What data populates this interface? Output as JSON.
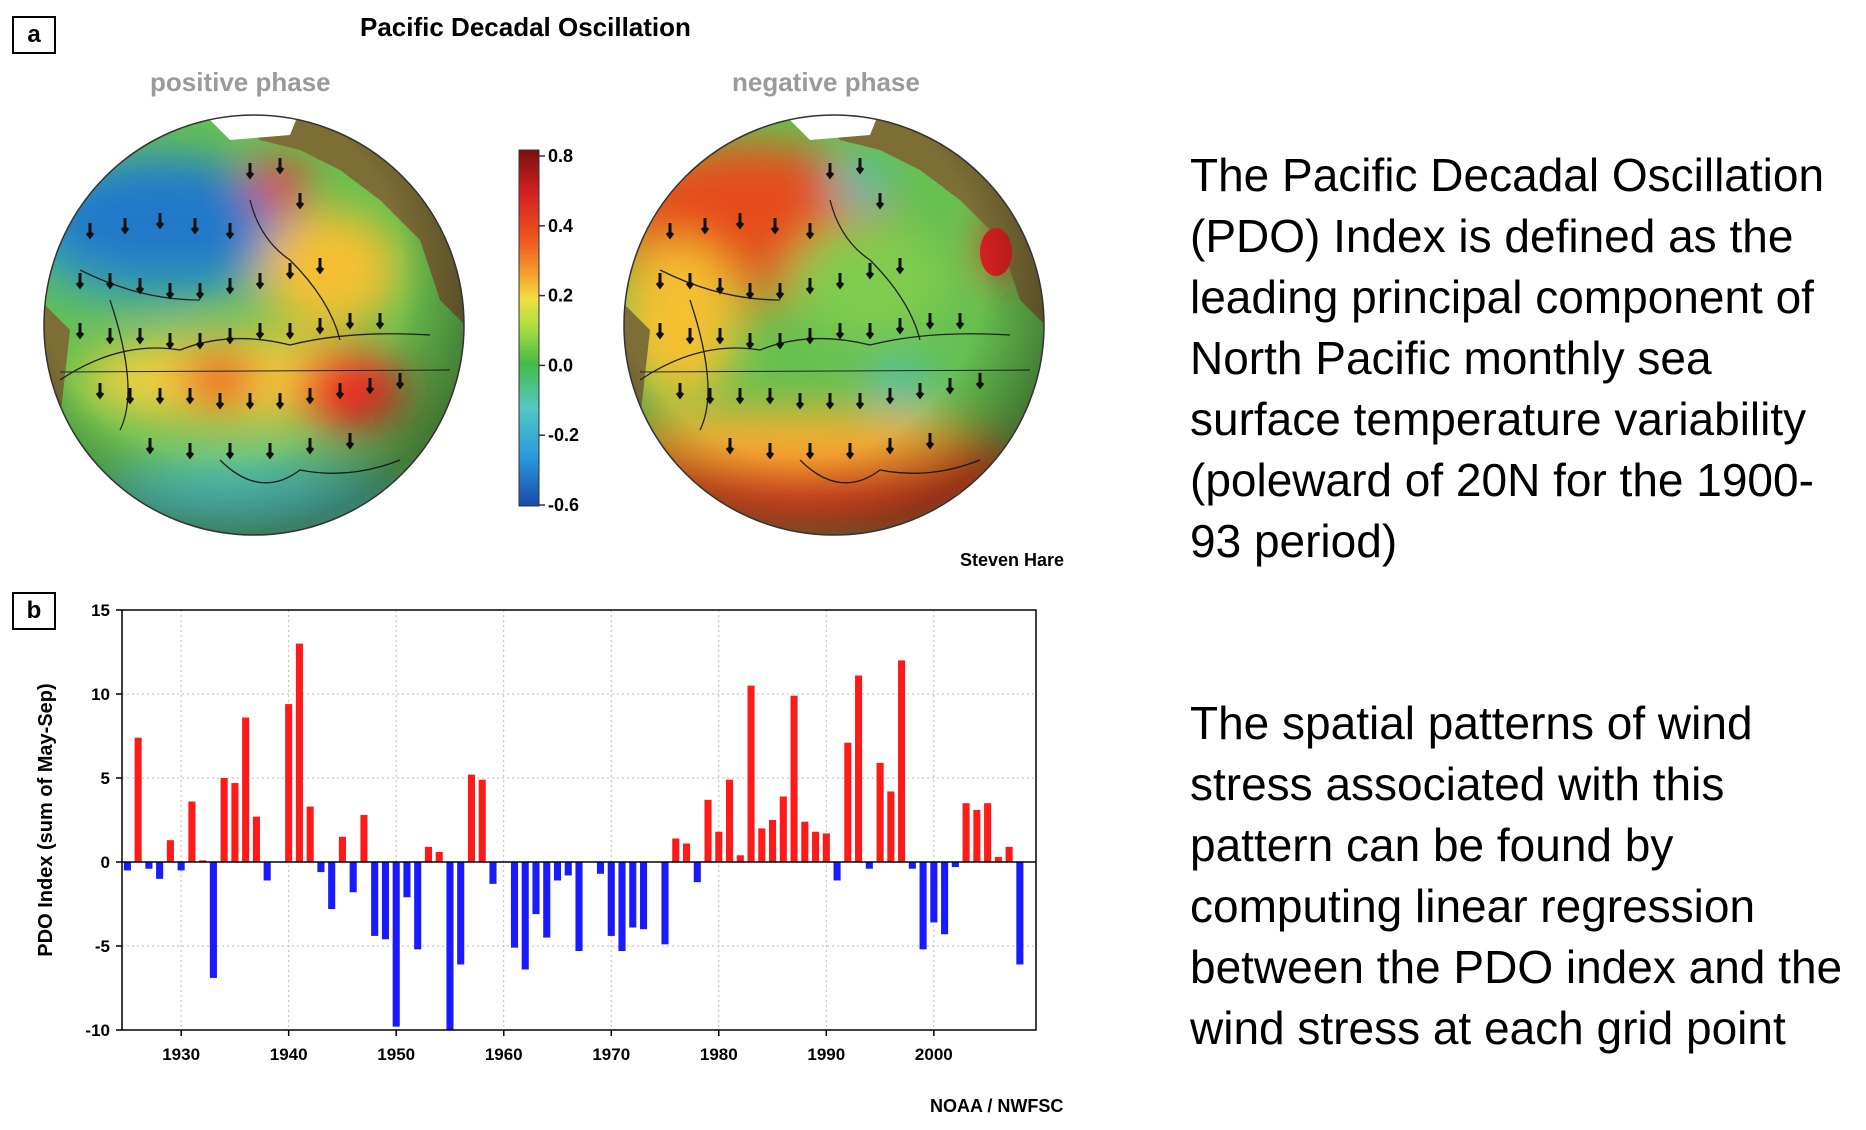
{
  "figure": {
    "panel_a_label": "a",
    "panel_b_label": "b",
    "title": "Pacific Decadal Oscillation",
    "positive_phase_label": "positive phase",
    "negative_phase_label": "negative phase",
    "credit_maps": "Steven Hare",
    "credit_chart": "NOAA / NWFSC",
    "colorbar": {
      "ticks": [
        "0.8",
        "0.4",
        "0.2",
        "0.0",
        "-0.2",
        "-0.6"
      ],
      "colors": [
        "#7a1010",
        "#d42020",
        "#ee5520",
        "#f5a030",
        "#f0e040",
        "#aadd40",
        "#44bb44",
        "#55c8c0",
        "#2a9ae0",
        "#1a4aa8"
      ]
    }
  },
  "description": {
    "paragraph1": "The Pacific Decadal Oscillation (PDO) Index is defined as the leading principal component of North Pacific monthly sea surface temperature variability (poleward of 20N for the 1900-93 period)",
    "paragraph2": "The spatial patterns of wind stress associated with this pattern can be found by computing linear regression between the PDO index and the wind stress at each grid point"
  },
  "chart_data": {
    "type": "bar",
    "ylabel": "PDO Index (sum of May-Sep)",
    "xlabel": "",
    "xlim": [
      1925,
      2009
    ],
    "ylim": [
      -10,
      15
    ],
    "yticks": [
      15,
      10,
      5,
      0,
      -5,
      -10
    ],
    "xticks": [
      1930,
      1940,
      1950,
      1960,
      1970,
      1980,
      1990,
      2000
    ],
    "grid": true,
    "positive_color": "#ff1a1a",
    "negative_color": "#1a1aff",
    "x": [
      1925,
      1926,
      1927,
      1928,
      1929,
      1930,
      1931,
      1932,
      1933,
      1934,
      1935,
      1936,
      1937,
      1938,
      1939,
      1940,
      1941,
      1942,
      1943,
      1944,
      1945,
      1946,
      1947,
      1948,
      1949,
      1950,
      1951,
      1952,
      1953,
      1954,
      1955,
      1956,
      1957,
      1958,
      1959,
      1960,
      1961,
      1962,
      1963,
      1964,
      1965,
      1966,
      1967,
      1968,
      1969,
      1970,
      1971,
      1972,
      1973,
      1974,
      1975,
      1976,
      1977,
      1978,
      1979,
      1980,
      1981,
      1982,
      1983,
      1984,
      1985,
      1986,
      1987,
      1988,
      1989,
      1990,
      1991,
      1992,
      1993,
      1994,
      1995,
      1996,
      1997,
      1998,
      1999,
      2000,
      2001,
      2002,
      2003,
      2004,
      2005,
      2006,
      2007,
      2008
    ],
    "values": [
      -0.5,
      7.4,
      -0.4,
      -1.0,
      1.3,
      -0.5,
      3.6,
      0.1,
      -6.9,
      5.0,
      4.7,
      8.6,
      2.7,
      -1.1,
      0.0,
      9.4,
      13.0,
      3.3,
      -0.6,
      -2.8,
      1.5,
      -1.8,
      2.8,
      -4.4,
      -4.6,
      -9.8,
      -2.1,
      -5.2,
      0.9,
      0.6,
      -10.0,
      -6.1,
      5.2,
      4.9,
      -1.3,
      0.0,
      -5.1,
      -6.4,
      -3.1,
      -4.5,
      -1.1,
      -0.8,
      -5.3,
      0.0,
      -0.7,
      -4.4,
      -5.3,
      -3.9,
      -4.0,
      0.0,
      -4.9,
      1.4,
      1.1,
      -1.2,
      3.7,
      1.8,
      4.9,
      0.4,
      10.5,
      2.0,
      2.5,
      3.9,
      9.9,
      2.4,
      1.8,
      1.7,
      -1.1,
      7.1,
      11.1,
      -0.4,
      5.9,
      4.2,
      12.0,
      -0.4,
      -5.2,
      -3.6,
      -4.3,
      -0.3,
      3.5,
      3.1,
      3.5,
      0.3,
      0.9,
      -6.1
    ]
  }
}
